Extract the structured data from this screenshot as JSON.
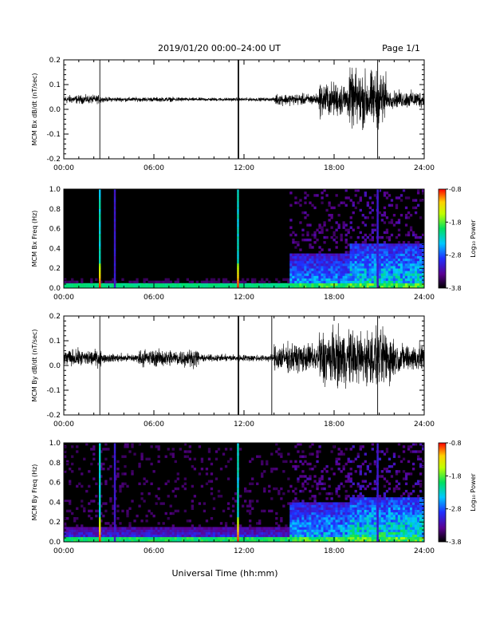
{
  "header": {
    "title": "2019/01/20  00:00–24:00 UT",
    "page": "Page 1/1"
  },
  "footer": {
    "xlabel": "Universal Time (hh:mm)"
  },
  "colorbar": {
    "label": "Log₁₀ Power",
    "ticks": [
      "-0.8",
      "-1.8",
      "-2.8",
      "-3.8"
    ],
    "range": [
      -3.8,
      -0.8
    ],
    "colors": [
      "#000000",
      "#5a0090",
      "#2030ff",
      "#00c8ff",
      "#00e060",
      "#c0ff00",
      "#ffd000",
      "#ff0000"
    ]
  },
  "chart_data": [
    {
      "type": "line",
      "ylabel": "MCM Bx dB/dt (nT/sec)",
      "x_unit": "hours UT",
      "xlim": [
        0,
        24
      ],
      "ylim": [
        -0.2,
        0.2
      ],
      "x_ticks": [
        "00:00",
        "06:00",
        "12:00",
        "18:00",
        "24:00"
      ],
      "y_ticks": [
        "-0.2",
        "-0.1",
        "0.0",
        "0.1",
        "0.2"
      ],
      "baseline": 0.04,
      "spikes_hours": [
        2.4,
        11.6,
        11.65,
        20.9
      ],
      "activity": [
        {
          "from": 0,
          "to": 2.5,
          "amplitude": 0.015
        },
        {
          "from": 2.5,
          "to": 8,
          "amplitude": 0.008
        },
        {
          "from": 8,
          "to": 14,
          "amplitude": 0.006
        },
        {
          "from": 14,
          "to": 17,
          "amplitude": 0.02
        },
        {
          "from": 17,
          "to": 19,
          "amplitude": 0.06
        },
        {
          "from": 19,
          "to": 21.5,
          "amplitude": 0.1
        },
        {
          "from": 21.5,
          "to": 24,
          "amplitude": 0.03
        }
      ]
    },
    {
      "type": "heatmap",
      "ylabel": "MCM Bx Freq (Hz)",
      "x_unit": "hours UT",
      "xlim": [
        0,
        24
      ],
      "ylim": [
        0,
        1
      ],
      "x_ticks": [
        "00:00",
        "06:00",
        "12:00",
        "18:00",
        "24:00"
      ],
      "y_ticks": [
        "0.0",
        "0.2",
        "0.4",
        "0.6",
        "0.8",
        "1.0"
      ],
      "vertical_lines_hours": [
        2.4,
        3.4,
        11.6,
        20.9
      ],
      "activity": [
        {
          "from": 0,
          "to": 15,
          "level": 0.15,
          "fmax": 0.1
        },
        {
          "from": 15,
          "to": 19,
          "level": 0.5,
          "fmax": 0.35
        },
        {
          "from": 19,
          "to": 24,
          "level": 0.6,
          "fmax": 0.45
        }
      ]
    },
    {
      "type": "line",
      "ylabel": "MCM By dB/dt (nT/sec)",
      "x_unit": "hours UT",
      "xlim": [
        0,
        24
      ],
      "ylim": [
        -0.2,
        0.2
      ],
      "x_ticks": [
        "00:00",
        "06:00",
        "12:00",
        "18:00",
        "24:00"
      ],
      "y_ticks": [
        "-0.2",
        "-0.1",
        "0.0",
        "0.1",
        "0.2"
      ],
      "baseline": 0.03,
      "spikes_hours": [
        2.4,
        11.6,
        11.65,
        13.85,
        20.9
      ],
      "activity": [
        {
          "from": 0,
          "to": 2.5,
          "amplitude": 0.03
        },
        {
          "from": 2.5,
          "to": 5,
          "amplitude": 0.015
        },
        {
          "from": 5,
          "to": 9,
          "amplitude": 0.03
        },
        {
          "from": 9,
          "to": 14,
          "amplitude": 0.012
        },
        {
          "from": 14,
          "to": 17,
          "amplitude": 0.05
        },
        {
          "from": 17,
          "to": 22,
          "amplitude": 0.1
        },
        {
          "from": 22,
          "to": 24,
          "amplitude": 0.05
        }
      ]
    },
    {
      "type": "heatmap",
      "ylabel": "MCM By Freq (Hz)",
      "x_unit": "hours UT",
      "xlim": [
        0,
        24
      ],
      "ylim": [
        0,
        1
      ],
      "x_ticks": [
        "00:00",
        "06:00",
        "12:00",
        "18:00",
        "24:00"
      ],
      "y_ticks": [
        "0.0",
        "0.2",
        "0.4",
        "0.6",
        "0.8",
        "1.0"
      ],
      "vertical_lines_hours": [
        2.4,
        3.4,
        11.6,
        20.9
      ],
      "activity": [
        {
          "from": 0,
          "to": 15,
          "level": 0.35,
          "fmax": 0.15
        },
        {
          "from": 15,
          "to": 19,
          "level": 0.55,
          "fmax": 0.4
        },
        {
          "from": 19,
          "to": 24,
          "level": 0.65,
          "fmax": 0.45
        }
      ]
    }
  ]
}
